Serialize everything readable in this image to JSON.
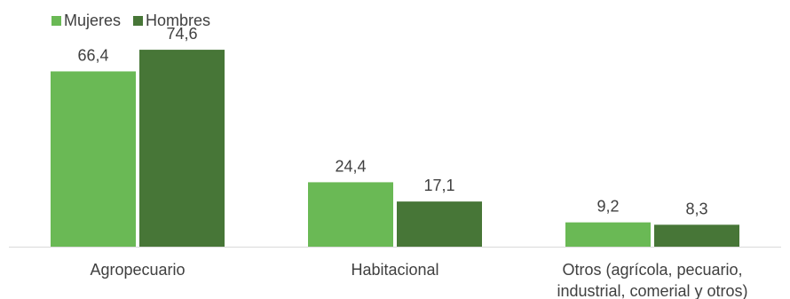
{
  "chart_data": {
    "type": "bar",
    "categories": [
      "Agropecuario",
      "Habitacional",
      "Otros (agrícola, pecuario, industrial, comerial y otros)"
    ],
    "category_lines": [
      [
        "Agropecuario"
      ],
      [
        "Habitacional"
      ],
      [
        "Otros (agrícola, pecuario,",
        "industrial, comerial y otros)"
      ]
    ],
    "series": [
      {
        "name": "Mujeres",
        "values": [
          66.4,
          24.4,
          9.2
        ],
        "labels": [
          "66,4",
          "24,4",
          "9,2"
        ],
        "color": "#6ab955"
      },
      {
        "name": "Hombres",
        "values": [
          74.6,
          17.1,
          8.3
        ],
        "labels": [
          "74,6",
          "17,1",
          "8,3"
        ],
        "color": "#477637"
      }
    ],
    "ylim": [
      0,
      80
    ],
    "grid": false,
    "legend": "top-left",
    "axis_color": "#d9d9d9",
    "text_color": "#404040"
  }
}
